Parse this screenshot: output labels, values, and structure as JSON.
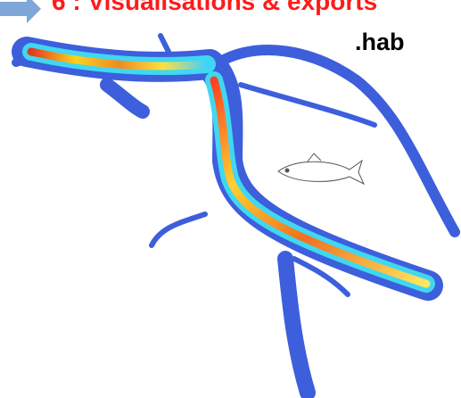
{
  "header": {
    "title": "6 : Visualisations & exports",
    "label": ".hab"
  }
}
